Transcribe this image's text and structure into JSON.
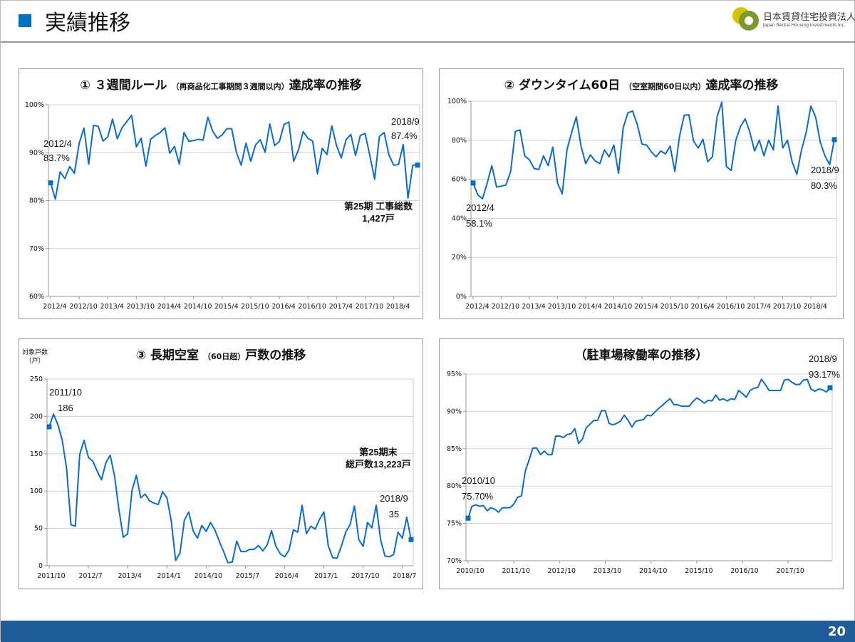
{
  "header": {
    "title": "実績推移",
    "logo_jp": "日本賃貸住宅投資法人",
    "logo_en": "Japan Rental Housing Investments Inc."
  },
  "footer": {
    "page": "20"
  },
  "colors": {
    "line": "#0a6ccf",
    "accent": "#0070c0",
    "footer": "#1f5c99",
    "grid": "#d0d0d0"
  },
  "chart_data": [
    {
      "type": "line",
      "title_main": "① ３週間ルール",
      "title_sub": "（再商品化工事期間３週間以内）",
      "title_end": "達成率の推移",
      "ylim": [
        60,
        100
      ],
      "yticks": [
        60,
        70,
        80,
        90,
        100
      ],
      "ytick_labels": [
        "60%",
        "70%",
        "80%",
        "90%",
        "100%"
      ],
      "xtick_labels": [
        "2012/4",
        "2012/10",
        "2013/4",
        "2013/10",
        "2014/4",
        "2014/10",
        "2015/4",
        "2015/10",
        "2016/4",
        "2016/10",
        "2017/4",
        "2017/10",
        "2018/4"
      ],
      "x_start": "2012/4",
      "x_end": "2018/9",
      "unit": "%",
      "values": [
        83.7,
        80.3,
        86.0,
        84.6,
        87.1,
        85.7,
        92.0,
        95.1,
        87.6,
        95.7,
        95.5,
        92.4,
        93.3,
        97.0,
        92.9,
        95.2,
        96.5,
        97.8,
        91.2,
        93.0,
        87.2,
        92.8,
        93.6,
        94.2,
        95.2,
        89.9,
        91.3,
        87.6,
        94.2,
        92.4,
        92.5,
        92.8,
        92.6,
        97.4,
        94.5,
        93.0,
        93.7,
        95.0,
        95.0,
        90.0,
        87.4,
        92.0,
        88.2,
        91.6,
        92.7,
        90.1,
        96.0,
        91.5,
        92.3,
        95.9,
        96.4,
        88.2,
        90.5,
        94.4,
        93.0,
        92.4,
        85.6,
        90.9,
        89.6,
        95.6,
        91.5,
        88.9,
        92.7,
        93.8,
        89.4,
        93.6,
        94.0,
        89.3,
        84.5,
        93.4,
        94.2,
        89.5,
        87.4,
        87.5,
        91.7,
        80.5,
        87.4,
        87.4
      ],
      "annotations": {
        "start_date": "2012/4",
        "start_value": "83.7%",
        "end_date": "2018/9",
        "end_value": "87.4%",
        "note1": "第25期 工事総数",
        "note2": "1,427戸"
      }
    },
    {
      "type": "line",
      "title_main": "② ダウンタイム60日",
      "title_sub": "（空室期間60日以内）",
      "title_end": "達成率の推移",
      "ylim": [
        0,
        100
      ],
      "yticks": [
        0,
        20,
        40,
        60,
        80,
        100
      ],
      "ytick_labels": [
        "0%",
        "20%",
        "40%",
        "60%",
        "80%",
        "100%"
      ],
      "xtick_labels": [
        "2012/4",
        "2012/10",
        "2013/4",
        "2013/10",
        "2014/4",
        "2014/10",
        "2015/4",
        "2015/10",
        "2016/4",
        "2016/10",
        "2017/4",
        "2017/10",
        "2018/4"
      ],
      "x_start": "2012/4",
      "x_end": "2018/9",
      "unit": "%",
      "values": [
        58.1,
        52,
        50,
        58,
        67,
        56,
        56.5,
        57,
        64,
        84.5,
        85.3,
        72,
        70,
        65.5,
        65,
        72,
        67,
        76.5,
        58,
        52.5,
        75,
        84,
        92,
        77,
        68,
        72.5,
        69.5,
        68,
        75,
        71.5,
        77.5,
        63,
        86.5,
        94,
        95,
        88,
        78,
        77.5,
        74,
        71.5,
        74.5,
        73,
        77,
        64,
        82,
        92.8,
        93,
        79.5,
        76,
        80.5,
        69,
        71.5,
        92,
        99.5,
        66.5,
        64.5,
        80,
        87,
        91,
        84,
        74.5,
        80,
        72,
        80,
        75,
        97.5,
        76,
        80,
        69,
        62.5,
        75,
        84,
        97.5,
        92,
        79,
        72,
        67.5,
        80.3
      ],
      "annotations": {
        "start_date": "2012/4",
        "start_value": "58.1%",
        "end_date": "2018/9",
        "end_value": "80.3%"
      }
    },
    {
      "type": "line",
      "title_main": "③ 長期空室",
      "title_sub": "（60日超）",
      "title_end": "戸数の推移",
      "ylabel": "対象戸数",
      "ylabel_unit": "（戸）",
      "ylim": [
        0,
        250
      ],
      "yticks": [
        0,
        50,
        100,
        150,
        200,
        250
      ],
      "ytick_labels": [
        "0",
        "50",
        "100",
        "150",
        "200",
        "250"
      ],
      "xtick_labels": [
        "2011/10",
        "2012/7",
        "2013/4",
        "2014/1",
        "2014/10",
        "2015/7",
        "2016/4",
        "2017/1",
        "2017/10",
        "2018/7"
      ],
      "x_start": "2011/10",
      "x_end": "2018/9",
      "unit": "戸",
      "values": [
        186,
        203,
        189,
        168,
        130,
        55,
        53,
        149,
        168,
        145,
        140,
        127,
        115,
        138,
        148,
        120,
        75,
        38,
        43,
        101,
        121,
        91,
        96,
        87,
        84,
        82,
        99,
        91,
        60,
        7,
        17,
        61,
        72,
        47,
        37,
        54,
        46,
        58,
        48,
        33,
        19,
        4,
        5,
        33,
        19,
        19,
        22,
        22,
        27,
        20,
        28,
        47,
        26,
        16,
        12,
        21,
        48,
        45,
        81,
        43,
        53,
        49,
        62,
        72,
        27,
        11,
        10,
        26,
        45,
        55,
        80,
        35,
        26,
        58,
        51,
        81,
        35,
        13,
        12,
        15,
        45,
        37,
        65,
        35
      ],
      "annotations": {
        "start_date": "2011/10",
        "start_value": "186",
        "end_date": "2018/9",
        "end_value": "35",
        "note1": "第25期末",
        "note2": "総戸数13,223戸"
      }
    },
    {
      "type": "line",
      "title_main": "（駐車場稼働率の推移）",
      "title_sub": "",
      "title_end": "",
      "ylim": [
        70,
        95
      ],
      "yticks": [
        70,
        75,
        80,
        85,
        90,
        95
      ],
      "ytick_labels": [
        "70%",
        "75%",
        "80%",
        "85%",
        "90%",
        "95%"
      ],
      "xtick_labels": [
        "2010/10",
        "2011/10",
        "2012/10",
        "2013/10",
        "2014/10",
        "2015/10",
        "2016/10",
        "2017/10"
      ],
      "x_start": "2010/10",
      "x_end": "2018/9",
      "unit": "%",
      "values": [
        75.7,
        77.3,
        77.5,
        77.3,
        77.4,
        76.7,
        77.1,
        76.9,
        76.5,
        77.1,
        77.1,
        77.1,
        77.6,
        78.5,
        78.7,
        82.0,
        83.5,
        85.1,
        85.1,
        84.2,
        84.7,
        84.2,
        84.2,
        86.7,
        86.7,
        86.5,
        86.9,
        87.0,
        87.7,
        85.7,
        86.3,
        87.8,
        88.3,
        88.8,
        88.8,
        90.1,
        90.1,
        88.4,
        88.2,
        88.4,
        88.7,
        89.5,
        88.8,
        87.9,
        88.7,
        88.8,
        88.9,
        89.5,
        89.4,
        89.9,
        90.4,
        90.8,
        91.3,
        91.7,
        90.9,
        90.9,
        90.7,
        90.7,
        90.7,
        91.3,
        91.8,
        91.5,
        91.1,
        91.5,
        91.4,
        92.2,
        91.5,
        91.7,
        91.4,
        91.7,
        91.6,
        92.8,
        92.4,
        91.9,
        92.8,
        93.1,
        93.2,
        94.3,
        93.6,
        92.8,
        92.8,
        92.8,
        92.8,
        94.2,
        94.3,
        93.9,
        93.6,
        93.6,
        94.2,
        94.3,
        93.0,
        92.7,
        93.0,
        92.9,
        92.6,
        93.17
      ],
      "annotations": {
        "start_date": "2010/10",
        "start_value": "75.70%",
        "end_date": "2018/9",
        "end_value": "93.17%"
      }
    }
  ]
}
